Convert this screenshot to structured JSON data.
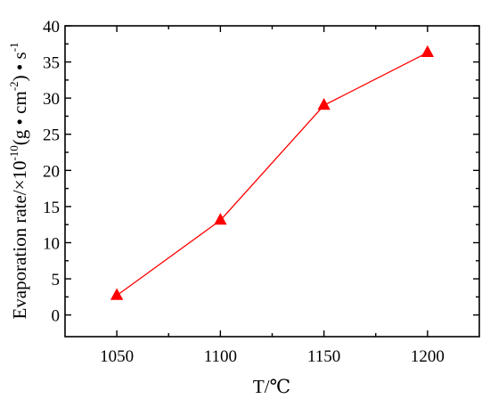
{
  "chart_data": {
    "type": "line",
    "title": "",
    "x": [
      1050,
      1100,
      1150,
      1200
    ],
    "series": [
      {
        "values": [
          2.7,
          13.1,
          29.0,
          36.3
        ]
      }
    ],
    "xlabel": "T/℃",
    "ylabel": "Evaporation rate/×10",
    "ylabel_exp1": "-10",
    "ylabel_mid": "(g • cm",
    "ylabel_exp2": "-2",
    "ylabel_tail": ") • s",
    "ylabel_exp3": "-1",
    "xlim": [
      1025,
      1225
    ],
    "ylim": [
      -3,
      40
    ],
    "xticks": [
      1050,
      1100,
      1150,
      1200
    ],
    "yticks": [
      0,
      5,
      10,
      15,
      20,
      25,
      30,
      35,
      40
    ],
    "marker": "triangle",
    "grid": false,
    "legend": "none",
    "colors": {
      "series": "#ff0000",
      "marker": "#ff0000",
      "axes": "#000000"
    }
  }
}
